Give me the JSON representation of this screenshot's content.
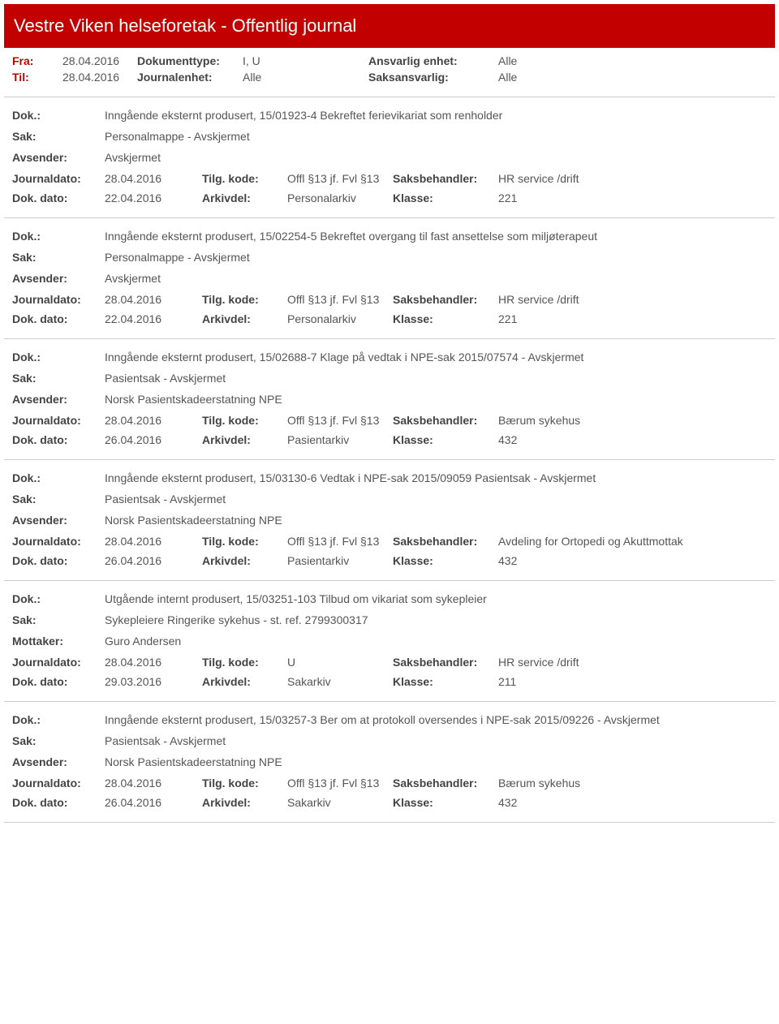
{
  "header": {
    "title": "Vestre Viken helseforetak - Offentlig journal"
  },
  "filters": {
    "fra_label": "Fra:",
    "fra_value": "28.04.2016",
    "til_label": "Til:",
    "til_value": "28.04.2016",
    "doktype_label": "Dokumenttype:",
    "doktype_value": "I, U",
    "journalenhet_label": "Journalenhet:",
    "journalenhet_value": "Alle",
    "ansvarlig_label": "Ansvarlig enhet:",
    "ansvarlig_value": "Alle",
    "saksansvarlig_label": "Saksansvarlig:",
    "saksansvarlig_value": "Alle"
  },
  "labels": {
    "dok": "Dok.:",
    "sak": "Sak:",
    "avsender": "Avsender:",
    "mottaker": "Mottaker:",
    "journaldato": "Journaldato:",
    "dokdato": "Dok. dato:",
    "tilgkode": "Tilg. kode:",
    "arkivdel": "Arkivdel:",
    "saksbehandler": "Saksbehandler:",
    "klasse": "Klasse:"
  },
  "entries": [
    {
      "dok": "Inngående eksternt produsert, 15/01923-4 Bekreftet ferievikariat som renholder",
      "sak": "Personalmappe - Avskjermet",
      "party_label": "Avsender:",
      "party": "Avskjermet",
      "journaldato": "28.04.2016",
      "tilgkode": "Offl §13 jf. Fvl §13",
      "saksbehandler": "HR service /drift",
      "dokdato": "22.04.2016",
      "arkivdel": "Personalarkiv",
      "klasse": "221"
    },
    {
      "dok": "Inngående eksternt produsert, 15/02254-5 Bekreftet overgang til fast ansettelse som miljøterapeut",
      "sak": "Personalmappe - Avskjermet",
      "party_label": "Avsender:",
      "party": "Avskjermet",
      "journaldato": "28.04.2016",
      "tilgkode": "Offl §13 jf. Fvl §13",
      "saksbehandler": "HR service /drift",
      "dokdato": "22.04.2016",
      "arkivdel": "Personalarkiv",
      "klasse": "221"
    },
    {
      "dok": "Inngående eksternt produsert, 15/02688-7 Klage på vedtak i NPE-sak 2015/07574 - Avskjermet",
      "sak": "Pasientsak - Avskjermet",
      "party_label": "Avsender:",
      "party": "Norsk Pasientskadeerstatning NPE",
      "journaldato": "28.04.2016",
      "tilgkode": "Offl §13 jf. Fvl §13",
      "saksbehandler": "Bærum sykehus",
      "dokdato": "26.04.2016",
      "arkivdel": "Pasientarkiv",
      "klasse": "432"
    },
    {
      "dok": "Inngående eksternt produsert, 15/03130-6 Vedtak i NPE-sak 2015/09059 Pasientsak - Avskjermet",
      "sak": "Pasientsak - Avskjermet",
      "party_label": "Avsender:",
      "party": "Norsk Pasientskadeerstatning NPE",
      "journaldato": "28.04.2016",
      "tilgkode": "Offl §13 jf. Fvl §13",
      "saksbehandler": "Avdeling for Ortopedi og Akuttmottak",
      "dokdato": "26.04.2016",
      "arkivdel": "Pasientarkiv",
      "klasse": "432"
    },
    {
      "dok": "Utgående internt produsert, 15/03251-103 Tilbud om vikariat som sykepleier",
      "sak": "Sykepleiere Ringerike sykehus - st. ref. 2799300317",
      "party_label": "Mottaker:",
      "party": "Guro Andersen",
      "journaldato": "28.04.2016",
      "tilgkode": "U",
      "saksbehandler": "HR service /drift",
      "dokdato": "29.03.2016",
      "arkivdel": "Sakarkiv",
      "klasse": "211"
    },
    {
      "dok": "Inngående eksternt produsert, 15/03257-3 Ber om at protokoll oversendes i NPE-sak 2015/09226 - Avskjermet",
      "sak": "Pasientsak - Avskjermet",
      "party_label": "Avsender:",
      "party": "Norsk Pasientskadeerstatning NPE",
      "journaldato": "28.04.2016",
      "tilgkode": "Offl §13 jf. Fvl §13",
      "saksbehandler": "Bærum sykehus",
      "dokdato": "26.04.2016",
      "arkivdel": "Sakarkiv",
      "klasse": "432"
    }
  ]
}
